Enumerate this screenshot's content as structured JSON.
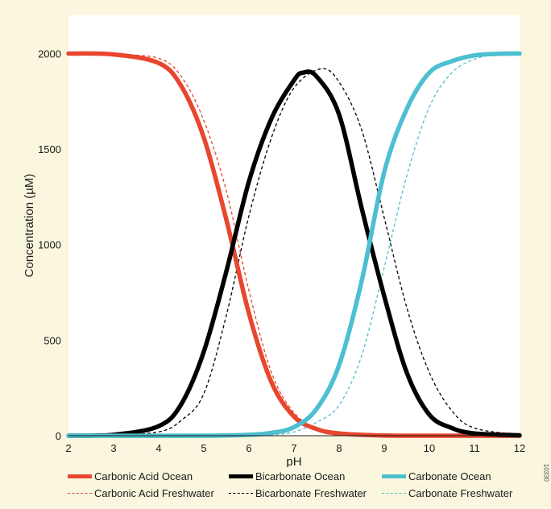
{
  "chart_data": {
    "type": "line",
    "xlabel": "pH",
    "ylabel": "Concentration (µM)",
    "xlim": [
      2,
      12
    ],
    "ylim": [
      0,
      2200
    ],
    "x_ticks": [
      "2",
      "3",
      "4",
      "5",
      "6",
      "7",
      "8",
      "9",
      "10",
      "11",
      "12"
    ],
    "y_ticks": [
      "0",
      "500",
      "1000",
      "1500",
      "2000"
    ],
    "grid": false,
    "legend_position": "bottom",
    "series": [
      {
        "name": "Carbonic Acid Ocean",
        "style": "solid",
        "color": "#e8462e",
        "x": [
          2,
          3,
          4,
          4.5,
          5,
          5.5,
          6,
          6.5,
          7,
          7.5,
          8,
          9,
          10,
          11,
          12
        ],
        "y": [
          2000,
          1995,
          1950,
          1830,
          1560,
          1130,
          640,
          280,
          100,
          35,
          12,
          1,
          0,
          0,
          0
        ]
      },
      {
        "name": "Bicarbonate Ocean",
        "style": "solid",
        "color": "#000000",
        "x": [
          2,
          3,
          4,
          4.5,
          5,
          5.5,
          6,
          6.5,
          7,
          7.2,
          7.5,
          8,
          8.5,
          9,
          9.5,
          10,
          10.5,
          11,
          12
        ],
        "y": [
          0,
          5,
          50,
          165,
          440,
          860,
          1330,
          1660,
          1860,
          1900,
          1880,
          1680,
          1190,
          730,
          330,
          110,
          40,
          12,
          2
        ]
      },
      {
        "name": "Carbonate Ocean",
        "style": "solid",
        "color": "#4cbfd0",
        "x": [
          2,
          5,
          6,
          6.5,
          7,
          7.5,
          8,
          8.5,
          9,
          9.5,
          10,
          10.5,
          11,
          11.5,
          12
        ],
        "y": [
          0,
          0,
          5,
          15,
          45,
          140,
          370,
          810,
          1380,
          1710,
          1900,
          1960,
          1990,
          1998,
          2000
        ]
      },
      {
        "name": "Carbonic Acid Freshwater",
        "style": "dashed",
        "color": "#e8462e",
        "x": [
          2,
          3,
          4,
          4.5,
          5,
          5.5,
          6,
          6.5,
          7,
          7.5,
          8,
          9,
          10,
          11,
          12
        ],
        "y": [
          2000,
          1995,
          1975,
          1880,
          1650,
          1280,
          760,
          330,
          120,
          40,
          10,
          1,
          0,
          0,
          0
        ]
      },
      {
        "name": "Bicarbonate Freshwater",
        "style": "dashed",
        "color": "#000000",
        "x": [
          2,
          3,
          4,
          4.5,
          5,
          5.5,
          6,
          6.5,
          7,
          7.6,
          8,
          8.5,
          9,
          9.5,
          10,
          10.5,
          11,
          12
        ],
        "y": [
          0,
          5,
          20,
          80,
          220,
          630,
          1150,
          1560,
          1820,
          1920,
          1850,
          1600,
          1140,
          670,
          330,
          130,
          40,
          5
        ]
      },
      {
        "name": "Carbonate Freshwater",
        "style": "dashed",
        "color": "#4cbfd0",
        "x": [
          2,
          6,
          6.5,
          7,
          7.5,
          8,
          8.5,
          9,
          9.5,
          10,
          10.5,
          11,
          11.5,
          12
        ],
        "y": [
          0,
          0,
          5,
          20,
          70,
          160,
          420,
          880,
          1360,
          1720,
          1900,
          1970,
          1995,
          2000
        ]
      }
    ]
  },
  "side_code": "10330"
}
